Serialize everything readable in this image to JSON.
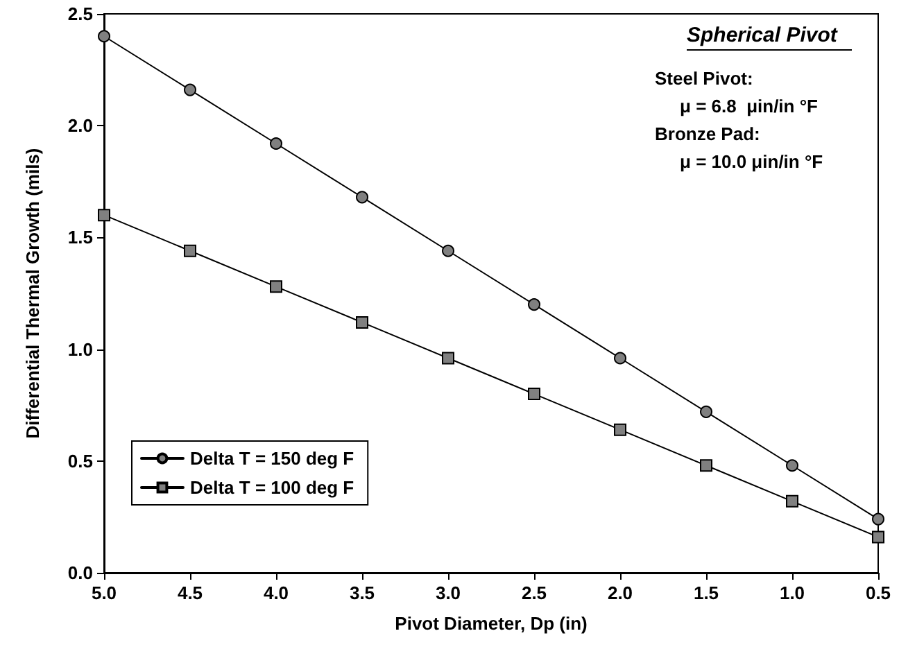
{
  "chart_data": {
    "type": "line",
    "xlabel": "Pivot Diameter, Dp (in)",
    "ylabel": "Differential Thermal Growth (mils)",
    "x": [
      5.0,
      4.5,
      4.0,
      3.5,
      3.0,
      2.5,
      2.0,
      1.5,
      1.0,
      0.5
    ],
    "series": [
      {
        "name": "Delta T = 150 deg F",
        "color": "#000000",
        "marker": "circle",
        "values": [
          2.4,
          2.16,
          1.92,
          1.68,
          1.44,
          1.2,
          0.96,
          0.72,
          0.48,
          0.24
        ]
      },
      {
        "name": "Delta T = 100 deg F",
        "color": "#000000",
        "marker": "square",
        "values": [
          1.6,
          1.44,
          1.28,
          1.12,
          0.96,
          0.8,
          0.64,
          0.48,
          0.32,
          0.16
        ]
      }
    ],
    "xlim": [
      5.0,
      0.5
    ],
    "xticks": [
      {
        "value": 5.0,
        "label": "5.0"
      },
      {
        "value": 4.5,
        "label": "4.5"
      },
      {
        "value": 4.0,
        "label": "4.0"
      },
      {
        "value": 3.5,
        "label": "3.5"
      },
      {
        "value": 3.0,
        "label": "3.0"
      },
      {
        "value": 2.5,
        "label": "2.5"
      },
      {
        "value": 2.0,
        "label": "2.0"
      },
      {
        "value": 1.5,
        "label": "1.5"
      },
      {
        "value": 1.0,
        "label": "1.0"
      },
      {
        "value": 0.5,
        "label": "0.5"
      }
    ],
    "ylim": [
      0,
      2.5
    ],
    "yticks": [
      {
        "value": 0,
        "label": "0.0"
      },
      {
        "value": 0.5,
        "label": "0.5"
      },
      {
        "value": 1.0,
        "label": "1.0"
      },
      {
        "value": 1.5,
        "label": "1.5"
      },
      {
        "value": 2.0,
        "label": "2.0"
      },
      {
        "value": 2.5,
        "label": "2.5"
      }
    ],
    "annotations": [
      "Spherical Pivot",
      "Steel Pivot:",
      "μ = 6.8  μin/in °F",
      "Bronze Pad:",
      "μ = 10.0 μin/in °F"
    ],
    "grid": false,
    "legend": "bottom left",
    "line_style": "solid"
  }
}
